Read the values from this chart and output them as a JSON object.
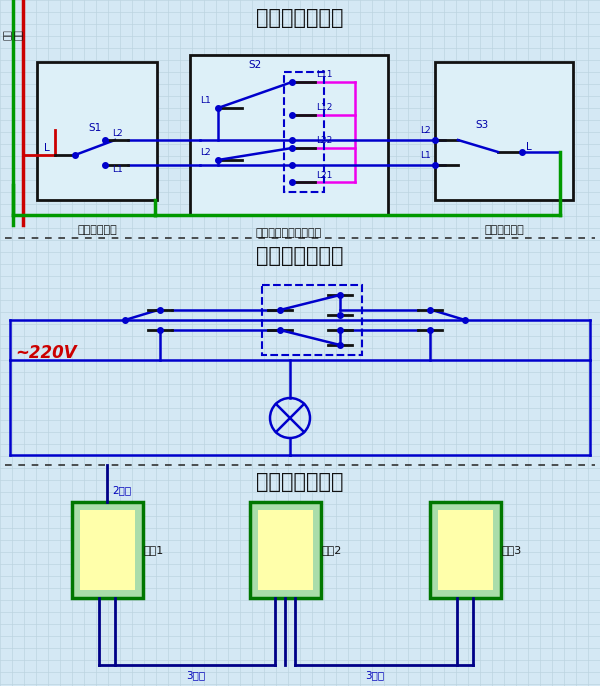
{
  "bg_color": "#d4e8f4",
  "grid_color": "#bdd4e0",
  "title1": "三控开关接线图",
  "title2": "三控开关原理图",
  "title3": "三控开关布线图",
  "title_fontsize": 15,
  "line_color": "#0000cc",
  "black_color": "#111111",
  "green_line": "#009900",
  "red_line": "#cc0000",
  "pink_line": "#ee00ee",
  "box_border": "#111111",
  "box_fill": "#ddf0f8",
  "switch_box_outer_fill": "#aaddaa",
  "switch_box_border": "#007700",
  "switch_inner_fill": "#ffffaa",
  "label_color": "#0000aa",
  "label_220v": "#cc0000",
  "wire_label_color": "#0000bb",
  "dot_color": "#0000cc",
  "divider_color": "#333333"
}
